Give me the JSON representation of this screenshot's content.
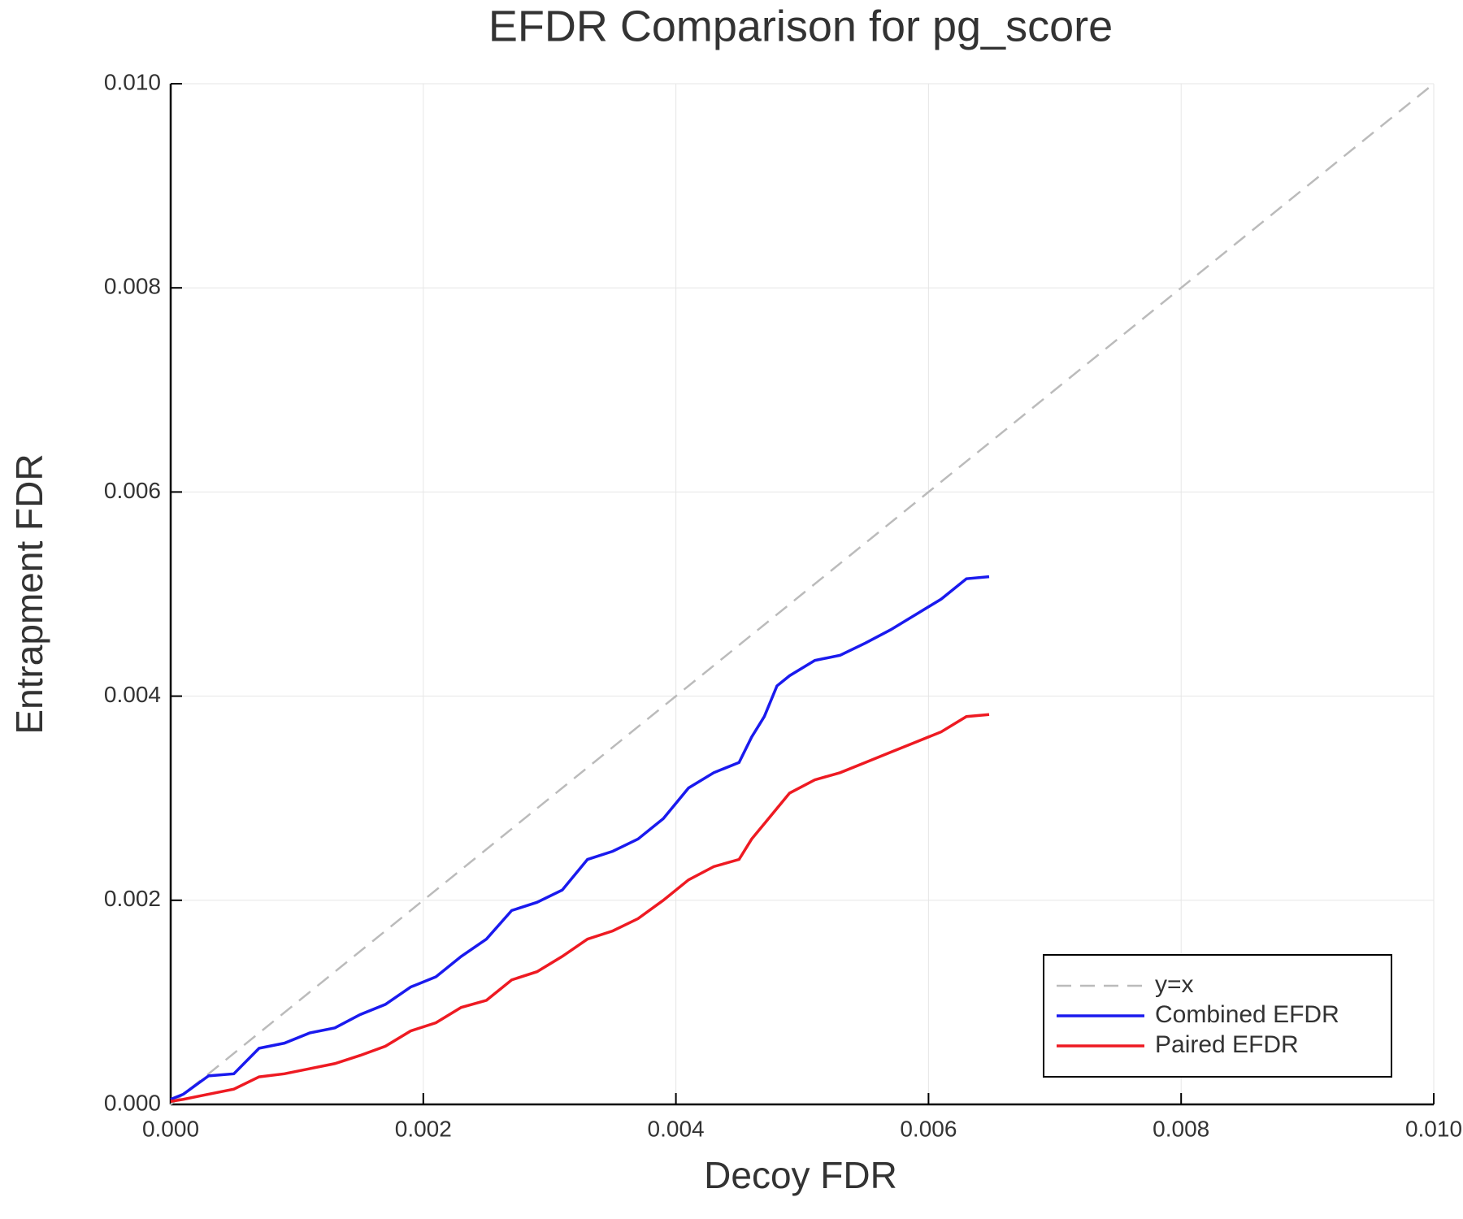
{
  "chart_data": {
    "type": "line",
    "title": "EFDR Comparison for pg_score",
    "x_label": "Decoy FDR",
    "y_label": "Entrapment FDR",
    "xlim": [
      0,
      0.01
    ],
    "ylim": [
      0,
      0.01
    ],
    "xticks": [
      {
        "value": 0,
        "label": "0.000"
      },
      0.002,
      0.004,
      0.006,
      0.008,
      {
        "value": 0.01,
        "label": "0.010"
      }
    ],
    "yticks": [
      {
        "value": 0,
        "label": "0.000"
      },
      0.002,
      0.004,
      0.006,
      0.008,
      {
        "value": 0.01,
        "label": "0.010"
      }
    ],
    "grid": true,
    "legend": "lower right",
    "series": [
      {
        "name": "y=x",
        "color": "#bbbbbb",
        "dashed": true,
        "x": [
          0,
          0.01
        ],
        "values": [
          0,
          0.01
        ]
      },
      {
        "name": "Combined EFDR",
        "color": "#1a1aee",
        "x": [
          0,
          0.0001,
          0.0003,
          0.0005,
          0.0007,
          0.0009,
          0.0011,
          0.0013,
          0.0015,
          0.0017,
          0.0019,
          0.0021,
          0.0023,
          0.0025,
          0.0027,
          0.0029,
          0.0031,
          0.0033,
          0.0035,
          0.0037,
          0.0039,
          0.0041,
          0.0043,
          0.0045,
          0.0046,
          0.0047,
          0.0048,
          0.0049,
          0.0051,
          0.0053,
          0.0055,
          0.0057,
          0.0059,
          0.0061,
          0.0063,
          0.00648
        ],
        "values": [
          5e-05,
          0.0001,
          0.00028,
          0.0003,
          0.00055,
          0.0006,
          0.0007,
          0.00075,
          0.00088,
          0.00098,
          0.00115,
          0.00125,
          0.00145,
          0.00162,
          0.0019,
          0.00198,
          0.0021,
          0.0024,
          0.00248,
          0.0026,
          0.0028,
          0.0031,
          0.00325,
          0.00335,
          0.0036,
          0.0038,
          0.0041,
          0.0042,
          0.00435,
          0.0044,
          0.00452,
          0.00465,
          0.0048,
          0.00495,
          0.00515,
          0.00517
        ]
      },
      {
        "name": "Paired EFDR",
        "color": "#ee1a22",
        "x": [
          0,
          0.0001,
          0.0003,
          0.0005,
          0.0007,
          0.0009,
          0.0011,
          0.0013,
          0.0015,
          0.0017,
          0.0019,
          0.0021,
          0.0023,
          0.0025,
          0.0027,
          0.0029,
          0.0031,
          0.0033,
          0.0035,
          0.0037,
          0.0039,
          0.0041,
          0.0043,
          0.0045,
          0.0046,
          0.0047,
          0.0048,
          0.0049,
          0.0051,
          0.0053,
          0.0055,
          0.0057,
          0.0059,
          0.0061,
          0.0063,
          0.00648
        ],
        "values": [
          3e-05,
          5e-05,
          0.0001,
          0.00015,
          0.00027,
          0.0003,
          0.00035,
          0.0004,
          0.00048,
          0.00057,
          0.00072,
          0.0008,
          0.00095,
          0.00102,
          0.00122,
          0.0013,
          0.00145,
          0.00162,
          0.0017,
          0.00182,
          0.002,
          0.0022,
          0.00233,
          0.0024,
          0.0026,
          0.00275,
          0.0029,
          0.00305,
          0.00318,
          0.00325,
          0.00335,
          0.00345,
          0.00355,
          0.00365,
          0.0038,
          0.00382
        ]
      }
    ]
  }
}
